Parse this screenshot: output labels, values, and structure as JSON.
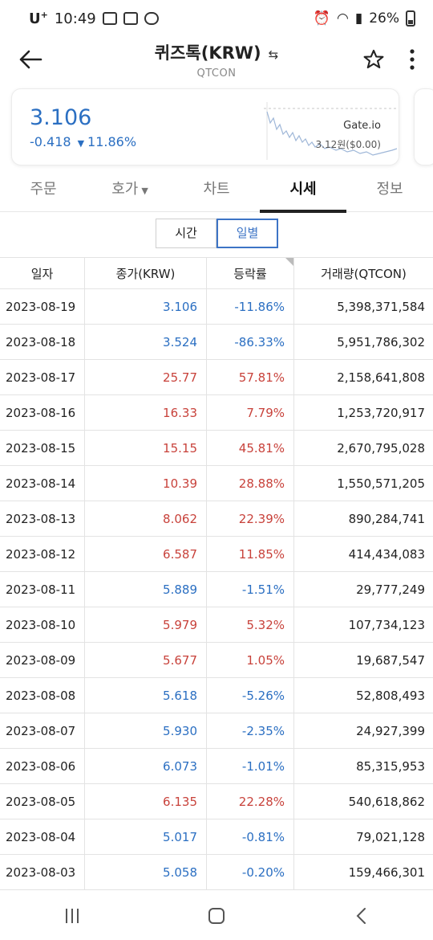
{
  "status_bar": {
    "carrier": "U",
    "carrier_sup": "+",
    "time": "10:49",
    "battery": "26%"
  },
  "header": {
    "title": "퀴즈톡(KRW)",
    "swap_icon": "swap-arrows-icon",
    "subtitle": "QTCON"
  },
  "price_card": {
    "price": "3.106",
    "change": "-0.418",
    "change_pct": "11.86%",
    "direction": "down",
    "exchange": "Gate.io",
    "ref_price": "3.12원($0.00)",
    "color_down": "#2b6fc2"
  },
  "tabs": [
    {
      "label": "주문",
      "active": false
    },
    {
      "label": "호가",
      "active": false,
      "caret": "▼"
    },
    {
      "label": "차트",
      "active": false
    },
    {
      "label": "시세",
      "active": true
    },
    {
      "label": "정보",
      "active": false
    }
  ],
  "toggle": {
    "options": [
      "시간",
      "일별"
    ],
    "selected": "일별"
  },
  "table": {
    "headers": [
      "일자",
      "종가(KRW)",
      "등락률",
      "거래량(QTCON)"
    ],
    "rows": [
      {
        "date": "2023-08-19",
        "close": "3.106",
        "rate": "-11.86%",
        "volume": "5,398,371,584",
        "dir": "down"
      },
      {
        "date": "2023-08-18",
        "close": "3.524",
        "rate": "-86.33%",
        "volume": "5,951,786,302",
        "dir": "down"
      },
      {
        "date": "2023-08-17",
        "close": "25.77",
        "rate": "57.81%",
        "volume": "2,158,641,808",
        "dir": "up"
      },
      {
        "date": "2023-08-16",
        "close": "16.33",
        "rate": "7.79%",
        "volume": "1,253,720,917",
        "dir": "up"
      },
      {
        "date": "2023-08-15",
        "close": "15.15",
        "rate": "45.81%",
        "volume": "2,670,795,028",
        "dir": "up"
      },
      {
        "date": "2023-08-14",
        "close": "10.39",
        "rate": "28.88%",
        "volume": "1,550,571,205",
        "dir": "up"
      },
      {
        "date": "2023-08-13",
        "close": "8.062",
        "rate": "22.39%",
        "volume": "890,284,741",
        "dir": "up"
      },
      {
        "date": "2023-08-12",
        "close": "6.587",
        "rate": "11.85%",
        "volume": "414,434,083",
        "dir": "up"
      },
      {
        "date": "2023-08-11",
        "close": "5.889",
        "rate": "-1.51%",
        "volume": "29,777,249",
        "dir": "down"
      },
      {
        "date": "2023-08-10",
        "close": "5.979",
        "rate": "5.32%",
        "volume": "107,734,123",
        "dir": "up"
      },
      {
        "date": "2023-08-09",
        "close": "5.677",
        "rate": "1.05%",
        "volume": "19,687,547",
        "dir": "up"
      },
      {
        "date": "2023-08-08",
        "close": "5.618",
        "rate": "-5.26%",
        "volume": "52,808,493",
        "dir": "down"
      },
      {
        "date": "2023-08-07",
        "close": "5.930",
        "rate": "-2.35%",
        "volume": "24,927,399",
        "dir": "down"
      },
      {
        "date": "2023-08-06",
        "close": "6.073",
        "rate": "-1.01%",
        "volume": "85,315,953",
        "dir": "down"
      },
      {
        "date": "2023-08-05",
        "close": "6.135",
        "rate": "22.28%",
        "volume": "540,618,862",
        "dir": "up"
      },
      {
        "date": "2023-08-04",
        "close": "5.017",
        "rate": "-0.81%",
        "volume": "79,021,128",
        "dir": "down"
      },
      {
        "date": "2023-08-03",
        "close": "5.058",
        "rate": "-0.20%",
        "volume": "159,466,301",
        "dir": "down"
      }
    ]
  },
  "colors": {
    "up": "#c8423b",
    "down": "#2b6fc2",
    "accent": "#3d74c6"
  }
}
